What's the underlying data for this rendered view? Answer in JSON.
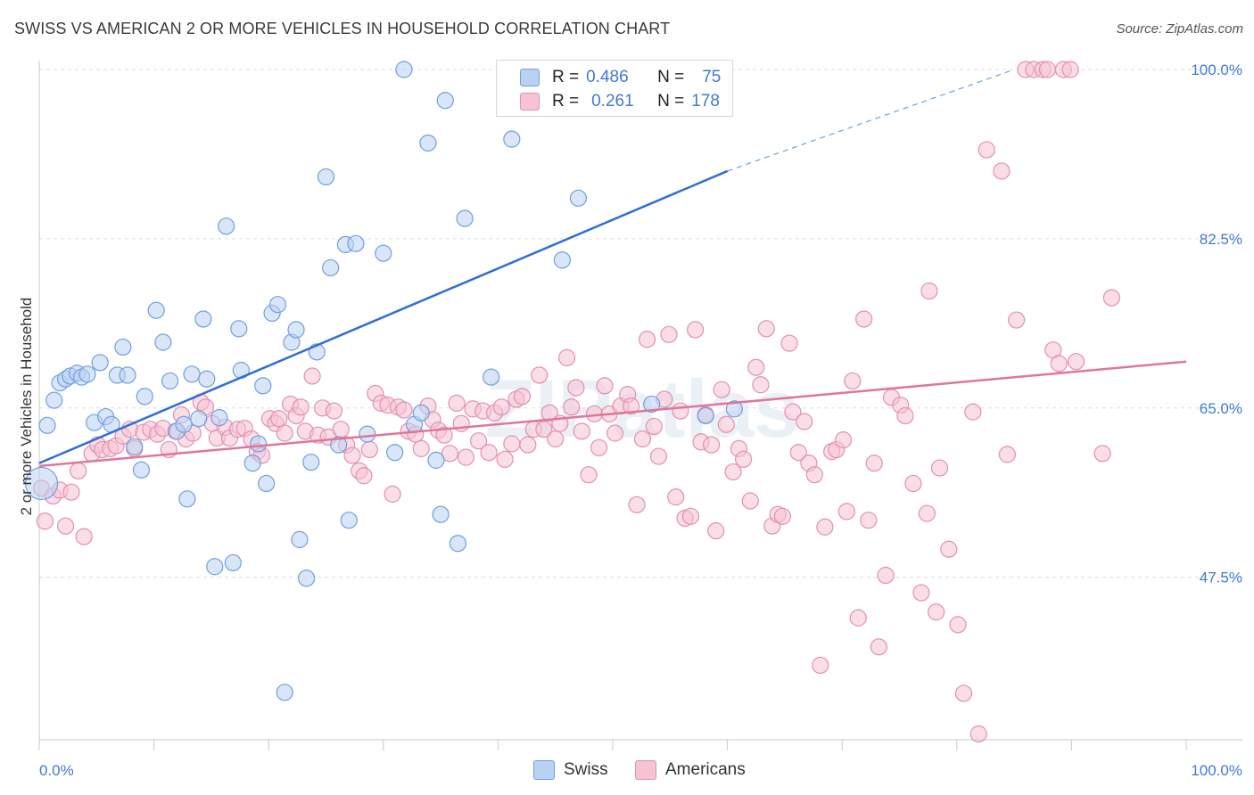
{
  "header": {
    "title": "SWISS VS AMERICAN 2 OR MORE VEHICLES IN HOUSEHOLD CORRELATION CHART",
    "source": "Source: ZipAtlas.com"
  },
  "legend": {
    "rows": [
      {
        "r_label": "R =",
        "r_value": "0.486",
        "n_label": "N =",
        "n_value": "75"
      },
      {
        "r_label": "R =",
        "r_value": "0.261",
        "n_label": "N =",
        "n_value": "178"
      }
    ],
    "bottom": [
      "Swiss",
      "Americans"
    ]
  },
  "watermark": "ZIPatlas",
  "colors": {
    "swiss": "#4a86d8",
    "swiss_fill": "#b9d2f2",
    "americans": "#e07599",
    "americans_fill": "#f6c3d3",
    "tick_text": "#3f7ad1"
  },
  "chart_data": {
    "type": "scatter",
    "title": "SWISS VS AMERICAN 2 OR MORE VEHICLES IN HOUSEHOLD CORRELATION CHART",
    "xlabel": "",
    "ylabel": "2 or more Vehicles in Household",
    "xlim": [
      0,
      100
    ],
    "ylim": [
      30.7,
      100
    ],
    "x_tick_labels": [
      "0.0%",
      "100.0%"
    ],
    "y_ticks": [
      47.5,
      65.0,
      82.5,
      100.0
    ],
    "y_tick_labels": [
      "47.5%",
      "65.0%",
      "82.5%",
      "100.0%"
    ],
    "grid": true,
    "legend_position": "top-center",
    "series": [
      {
        "name": "Swiss",
        "r": 0.486,
        "n": 75,
        "trend": {
          "x": [
            0,
            60
          ],
          "y": [
            59.3,
            89.5
          ],
          "dashed_to": [
            85,
            100
          ]
        },
        "points": [
          [
            0.2,
            57.2
          ],
          [
            0.7,
            63.2
          ],
          [
            1.3,
            65.8
          ],
          [
            1.8,
            67.6
          ],
          [
            2.3,
            68.0
          ],
          [
            2.7,
            68.3
          ],
          [
            3.3,
            68.6
          ],
          [
            3.7,
            68.2
          ],
          [
            4.2,
            68.5
          ],
          [
            4.8,
            63.5
          ],
          [
            5.3,
            69.7
          ],
          [
            5.8,
            64.1
          ],
          [
            6.3,
            63.3
          ],
          [
            6.8,
            68.4
          ],
          [
            7.3,
            71.3
          ],
          [
            7.7,
            68.4
          ],
          [
            8.3,
            61.0
          ],
          [
            8.9,
            58.6
          ],
          [
            9.2,
            66.2
          ],
          [
            10.2,
            75.1
          ],
          [
            10.8,
            71.8
          ],
          [
            11.4,
            67.8
          ],
          [
            12.0,
            62.6
          ],
          [
            12.6,
            63.3
          ],
          [
            12.9,
            55.6
          ],
          [
            13.3,
            68.5
          ],
          [
            13.9,
            63.9
          ],
          [
            14.3,
            74.2
          ],
          [
            14.6,
            68.0
          ],
          [
            15.3,
            48.6
          ],
          [
            15.7,
            64.0
          ],
          [
            16.3,
            83.8
          ],
          [
            16.9,
            49.0
          ],
          [
            17.4,
            73.2
          ],
          [
            17.6,
            68.9
          ],
          [
            18.6,
            59.3
          ],
          [
            19.1,
            61.3
          ],
          [
            19.5,
            67.3
          ],
          [
            19.8,
            57.2
          ],
          [
            20.3,
            74.8
          ],
          [
            20.8,
            75.7
          ],
          [
            21.4,
            35.6
          ],
          [
            22.0,
            71.8
          ],
          [
            22.4,
            73.1
          ],
          [
            22.7,
            51.4
          ],
          [
            23.3,
            47.4
          ],
          [
            23.7,
            59.4
          ],
          [
            24.2,
            70.8
          ],
          [
            25.0,
            88.9
          ],
          [
            25.4,
            79.5
          ],
          [
            26.1,
            61.2
          ],
          [
            26.7,
            81.9
          ],
          [
            27.0,
            53.4
          ],
          [
            27.6,
            82.0
          ],
          [
            28.6,
            62.3
          ],
          [
            30.0,
            81.0
          ],
          [
            31.0,
            60.4
          ],
          [
            31.8,
            100.0
          ],
          [
            32.7,
            63.3
          ],
          [
            33.3,
            64.5
          ],
          [
            33.9,
            92.4
          ],
          [
            34.6,
            59.6
          ],
          [
            35.0,
            54.0
          ],
          [
            35.4,
            96.8
          ],
          [
            36.5,
            51.0
          ],
          [
            37.1,
            84.6
          ],
          [
            39.4,
            68.2
          ],
          [
            41.2,
            92.8
          ],
          [
            45.0,
            100.0
          ],
          [
            45.6,
            80.3
          ],
          [
            47.0,
            86.7
          ],
          [
            52.0,
            100.0
          ],
          [
            53.4,
            65.4
          ],
          [
            58.1,
            64.2
          ],
          [
            60.6,
            64.9
          ]
        ]
      },
      {
        "name": "Americans",
        "r": 0.261,
        "n": 178,
        "trend": {
          "x": [
            0,
            100
          ],
          "y": [
            59.0,
            69.8
          ]
        },
        "points": [
          [
            0.2,
            56.7
          ],
          [
            0.5,
            53.3
          ],
          [
            1.2,
            55.9
          ],
          [
            1.8,
            56.5
          ],
          [
            2.3,
            52.8
          ],
          [
            2.8,
            56.3
          ],
          [
            3.4,
            58.5
          ],
          [
            3.9,
            51.7
          ],
          [
            4.6,
            60.3
          ],
          [
            5.1,
            61.2
          ],
          [
            5.5,
            60.7
          ],
          [
            6.2,
            60.8
          ],
          [
            6.7,
            61.1
          ],
          [
            7.3,
            62.1
          ],
          [
            7.9,
            62.8
          ],
          [
            8.3,
            60.8
          ],
          [
            9.1,
            62.5
          ],
          [
            9.7,
            62.8
          ],
          [
            10.3,
            62.3
          ],
          [
            10.8,
            62.9
          ],
          [
            11.3,
            60.7
          ],
          [
            11.9,
            62.6
          ],
          [
            12.4,
            64.3
          ],
          [
            12.8,
            61.8
          ],
          [
            13.4,
            62.4
          ],
          [
            14.1,
            65.6
          ],
          [
            14.5,
            65.1
          ],
          [
            15.1,
            63.4
          ],
          [
            15.5,
            61.9
          ],
          [
            16.2,
            63.0
          ],
          [
            16.6,
            61.9
          ],
          [
            17.3,
            62.8
          ],
          [
            17.9,
            62.9
          ],
          [
            18.5,
            61.8
          ],
          [
            19.0,
            60.5
          ],
          [
            19.4,
            60.1
          ],
          [
            20.1,
            63.9
          ],
          [
            20.6,
            63.4
          ],
          [
            20.9,
            63.9
          ],
          [
            21.4,
            62.4
          ],
          [
            21.9,
            65.4
          ],
          [
            22.4,
            64.2
          ],
          [
            22.8,
            65.1
          ],
          [
            23.2,
            62.6
          ],
          [
            23.8,
            68.3
          ],
          [
            24.3,
            62.2
          ],
          [
            24.7,
            65.0
          ],
          [
            25.2,
            62.0
          ],
          [
            25.7,
            64.7
          ],
          [
            26.3,
            62.8
          ],
          [
            26.8,
            61.2
          ],
          [
            27.3,
            60.1
          ],
          [
            27.9,
            58.5
          ],
          [
            28.3,
            58.0
          ],
          [
            28.8,
            60.7
          ],
          [
            29.3,
            66.5
          ],
          [
            29.8,
            65.5
          ],
          [
            30.4,
            65.3
          ],
          [
            30.8,
            56.1
          ],
          [
            31.3,
            65.1
          ],
          [
            31.8,
            64.8
          ],
          [
            32.2,
            62.6
          ],
          [
            32.8,
            62.3
          ],
          [
            33.3,
            60.8
          ],
          [
            33.9,
            65.2
          ],
          [
            34.3,
            63.8
          ],
          [
            34.8,
            62.7
          ],
          [
            35.3,
            62.2
          ],
          [
            35.8,
            60.3
          ],
          [
            36.4,
            65.5
          ],
          [
            36.8,
            63.4
          ],
          [
            37.2,
            59.9
          ],
          [
            37.8,
            64.9
          ],
          [
            38.3,
            61.6
          ],
          [
            38.7,
            64.7
          ],
          [
            39.2,
            60.4
          ],
          [
            39.7,
            64.5
          ],
          [
            40.3,
            65.1
          ],
          [
            40.6,
            59.7
          ],
          [
            41.2,
            61.3
          ],
          [
            41.6,
            65.9
          ],
          [
            42.1,
            66.2
          ],
          [
            42.6,
            61.2
          ],
          [
            43.1,
            62.8
          ],
          [
            43.6,
            68.4
          ],
          [
            44.0,
            62.8
          ],
          [
            44.5,
            64.5
          ],
          [
            45.0,
            61.8
          ],
          [
            45.4,
            63.4
          ],
          [
            46.0,
            70.2
          ],
          [
            46.4,
            65.1
          ],
          [
            46.8,
            67.1
          ],
          [
            47.3,
            62.6
          ],
          [
            47.9,
            58.1
          ],
          [
            48.4,
            64.4
          ],
          [
            48.8,
            60.9
          ],
          [
            49.3,
            67.3
          ],
          [
            49.7,
            64.4
          ],
          [
            50.2,
            62.4
          ],
          [
            50.7,
            65.2
          ],
          [
            51.3,
            66.4
          ],
          [
            51.6,
            65.2
          ],
          [
            52.1,
            55.0
          ],
          [
            52.6,
            61.8
          ],
          [
            53.0,
            72.1
          ],
          [
            53.6,
            63.1
          ],
          [
            54.0,
            60.0
          ],
          [
            54.5,
            65.9
          ],
          [
            54.9,
            72.6
          ],
          [
            55.5,
            55.8
          ],
          [
            55.9,
            64.7
          ],
          [
            56.3,
            53.6
          ],
          [
            56.8,
            53.8
          ],
          [
            57.2,
            73.1
          ],
          [
            57.7,
            61.5
          ],
          [
            58.1,
            64.3
          ],
          [
            58.6,
            61.2
          ],
          [
            59.0,
            52.3
          ],
          [
            59.5,
            66.9
          ],
          [
            59.9,
            63.3
          ],
          [
            60.5,
            58.4
          ],
          [
            61.0,
            60.8
          ],
          [
            61.4,
            59.7
          ],
          [
            62.0,
            55.4
          ],
          [
            62.5,
            69.2
          ],
          [
            62.9,
            67.4
          ],
          [
            63.4,
            73.2
          ],
          [
            63.9,
            52.8
          ],
          [
            64.4,
            54.0
          ],
          [
            64.8,
            53.8
          ],
          [
            65.4,
            71.7
          ],
          [
            65.7,
            64.6
          ],
          [
            66.2,
            60.4
          ],
          [
            66.7,
            63.6
          ],
          [
            67.1,
            59.3
          ],
          [
            67.6,
            58.1
          ],
          [
            68.1,
            38.4
          ],
          [
            68.5,
            52.7
          ],
          [
            69.1,
            60.5
          ],
          [
            69.5,
            60.7
          ],
          [
            70.1,
            61.7
          ],
          [
            70.4,
            54.3
          ],
          [
            70.9,
            67.8
          ],
          [
            71.4,
            43.3
          ],
          [
            71.9,
            74.2
          ],
          [
            72.3,
            53.4
          ],
          [
            72.8,
            59.3
          ],
          [
            73.2,
            40.3
          ],
          [
            73.8,
            47.7
          ],
          [
            74.3,
            66.1
          ],
          [
            75.1,
            65.3
          ],
          [
            75.5,
            64.2
          ],
          [
            76.2,
            57.2
          ],
          [
            76.9,
            45.9
          ],
          [
            77.4,
            54.1
          ],
          [
            77.6,
            77.1
          ],
          [
            78.2,
            43.9
          ],
          [
            78.5,
            58.8
          ],
          [
            79.3,
            50.4
          ],
          [
            80.1,
            42.6
          ],
          [
            80.6,
            35.5
          ],
          [
            81.4,
            64.6
          ],
          [
            81.9,
            31.3
          ],
          [
            82.6,
            91.7
          ],
          [
            83.9,
            89.5
          ],
          [
            84.4,
            60.2
          ],
          [
            85.2,
            74.1
          ],
          [
            86.0,
            100.0
          ],
          [
            86.7,
            100.0
          ],
          [
            87.5,
            100.0
          ],
          [
            87.9,
            100.0
          ],
          [
            88.4,
            71.0
          ],
          [
            88.9,
            69.6
          ],
          [
            89.3,
            100.0
          ],
          [
            89.9,
            100.0
          ],
          [
            90.4,
            69.8
          ],
          [
            92.7,
            60.3
          ],
          [
            93.5,
            76.4
          ]
        ]
      }
    ]
  }
}
